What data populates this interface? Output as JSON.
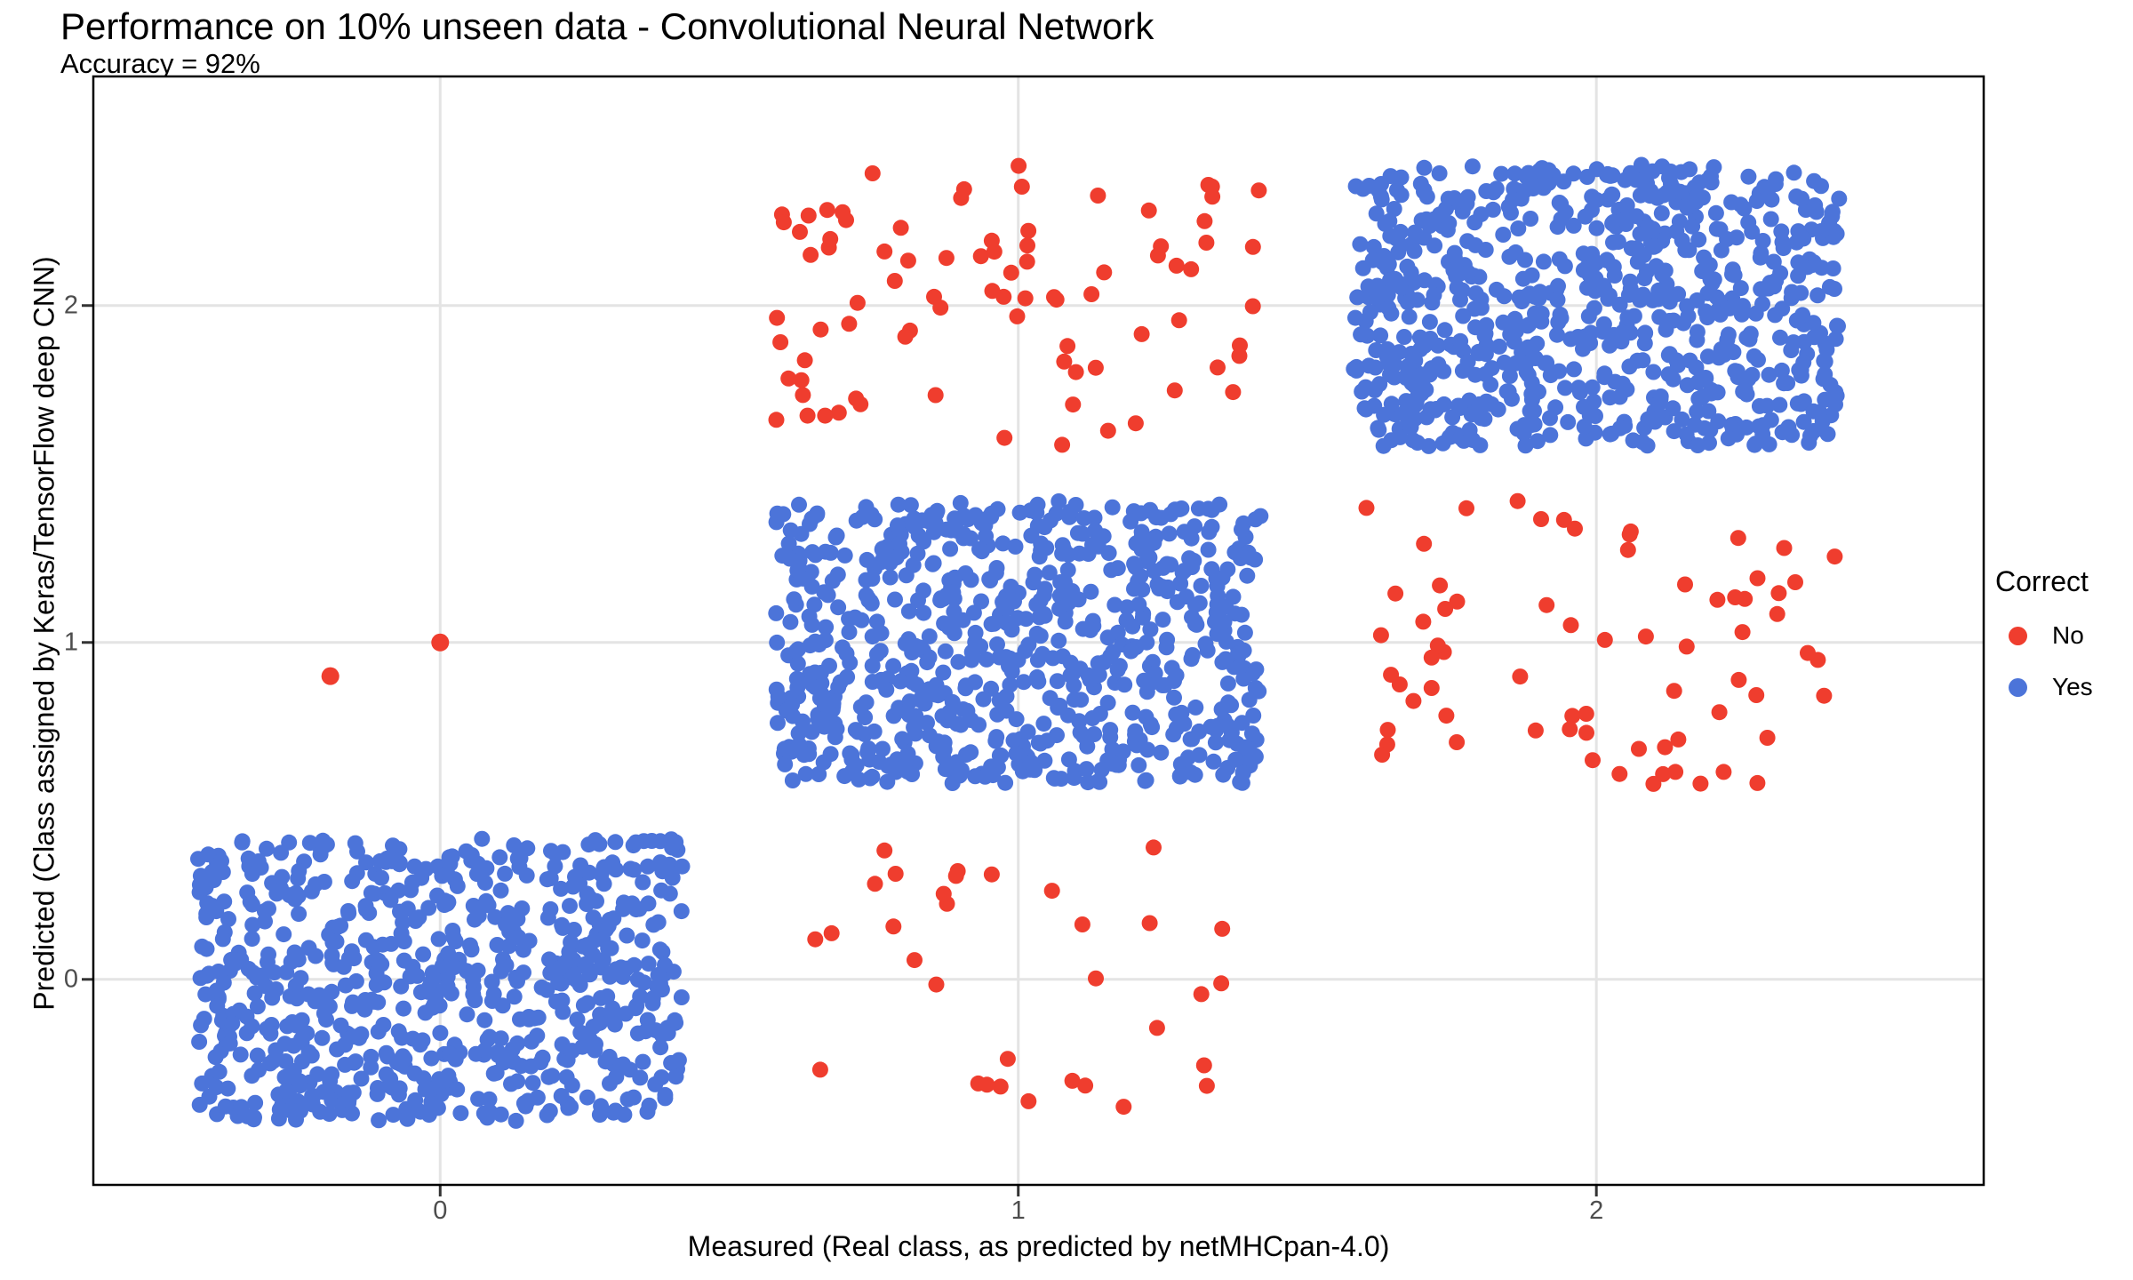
{
  "chart_data": {
    "type": "scatter",
    "subtype": "jitter-confusion-plot",
    "title": "Performance on 10% unseen data - Convolutional Neural Network",
    "subtitle": "Accuracy = 92%",
    "xlabel": "Measured (Real class, as predicted by netMHCpan-4.0)",
    "ylabel": "Predicted (Class assigned by Keras/TensorFlow deep CNN)",
    "x_ticks": [
      0,
      1,
      2
    ],
    "y_ticks": [
      0,
      1,
      2
    ],
    "xlim": [
      -0.6,
      2.67
    ],
    "ylim": [
      -0.61,
      2.68
    ],
    "grid": true,
    "background": "#ffffff",
    "gridline_color": "#e4e4e4",
    "panel_border_color": "#000000",
    "tick_label_color": "#4d4d4d",
    "colors": {
      "No": "#ef3d2e",
      "Yes": "#4c74d9"
    },
    "point_radius_px": 9,
    "jitter_halfwidth": 0.42,
    "seed": 20,
    "legend": {
      "title": "Correct",
      "position": "right",
      "items": [
        {
          "label": "No"
        },
        {
          "label": "Yes"
        }
      ]
    },
    "clusters": [
      {
        "measured": 0,
        "predicted": 0,
        "correct": "Yes",
        "count": 700
      },
      {
        "measured": 1,
        "predicted": 1,
        "correct": "Yes",
        "count": 730
      },
      {
        "measured": 2,
        "predicted": 2,
        "correct": "Yes",
        "count": 760
      },
      {
        "measured": 1,
        "predicted": 2,
        "correct": "No",
        "count": 85
      },
      {
        "measured": 2,
        "predicted": 1,
        "correct": "No",
        "count": 70
      },
      {
        "measured": 1,
        "predicted": 0,
        "correct": "No",
        "count": 33
      }
    ],
    "outlier_points": [
      {
        "measured": 0,
        "predicted": 1.0,
        "correct": "No"
      },
      {
        "measured": -0.19,
        "predicted": 0.9,
        "correct": "No"
      }
    ]
  }
}
